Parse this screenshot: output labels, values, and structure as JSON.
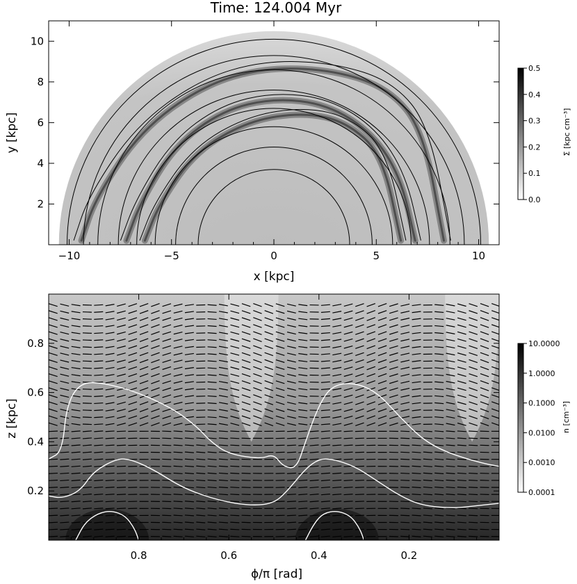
{
  "chart_data": [
    {
      "type": "heatmap",
      "title": "Time: 124.004 Myr",
      "xlabel": "x [kpc]",
      "ylabel": "y [kpc]",
      "xlim": [
        -11,
        11
      ],
      "ylim": [
        0,
        11
      ],
      "x_ticks": [
        -10,
        -5,
        0,
        5,
        10
      ],
      "x_tick_labels": [
        "−10",
        "−5",
        "0",
        "5",
        "10"
      ],
      "y_ticks": [
        2,
        4,
        6,
        8,
        10
      ],
      "y_tick_labels": [
        "2",
        "4",
        "6",
        "8",
        "10"
      ],
      "disk_radius": 10.5,
      "contour_radii": [
        3.7,
        4.8,
        5.8,
        6.7,
        7.6,
        8.6,
        9.3,
        10.1
      ],
      "spiral_arms": [
        {
          "x": [
            -9.4,
            -8.7,
            -6.5,
            -3.5,
            -0.5,
            2.8,
            5.6,
            7.3,
            8.3
          ],
          "y": [
            0.2,
            2.3,
            5.6,
            7.8,
            8.7,
            8.6,
            7.7,
            5.6,
            0.2
          ]
        },
        {
          "x": [
            -6.3,
            -5.6,
            -3.8,
            -1.2,
            1.5,
            3.6,
            5.3,
            6.2
          ],
          "y": [
            0.2,
            2.0,
            4.6,
            6.1,
            6.5,
            6.0,
            4.4,
            0.2
          ]
        },
        {
          "x": [
            -7.2,
            -6.5,
            -4.8,
            -2.5,
            0.0,
            2.6,
            4.8,
            6.2,
            6.9
          ],
          "y": [
            0.2,
            2.1,
            4.9,
            6.6,
            7.2,
            6.9,
            5.5,
            3.3,
            0.2
          ]
        }
      ],
      "colorbar": {
        "label": "Σ [kpc cm⁻³]",
        "range": [
          0.0,
          0.5
        ],
        "ticks": [
          0.0,
          0.1,
          0.2,
          0.3,
          0.4,
          0.5
        ],
        "tick_labels": [
          "0.0",
          "0.1",
          "0.2",
          "0.3",
          "0.4",
          "0.5"
        ]
      }
    },
    {
      "type": "heatmap",
      "title": "",
      "xlabel": "ϕ/π [rad]",
      "ylabel": "z [kpc]",
      "xlim": [
        1.0,
        0.0
      ],
      "ylim": [
        0.0,
        1.0
      ],
      "x_ticks": [
        0.8,
        0.6,
        0.4,
        0.2
      ],
      "x_tick_labels": [
        "0.8",
        "0.6",
        "0.4",
        "0.2"
      ],
      "y_ticks": [
        0.2,
        0.4,
        0.6,
        0.8
      ],
      "y_tick_labels": [
        "0.2",
        "0.4",
        "0.6",
        "0.8"
      ],
      "contours": [
        {
          "level": "outer",
          "x": [
            1.0,
            0.97,
            0.96,
            0.93,
            0.88,
            0.8,
            0.72,
            0.67,
            0.64,
            0.6,
            0.53,
            0.5,
            0.48,
            0.45,
            0.43,
            0.4,
            0.37,
            0.32,
            0.27,
            0.22,
            0.17,
            0.12,
            0.07,
            0.03,
            0.0
          ],
          "y": [
            0.33,
            0.36,
            0.55,
            0.64,
            0.64,
            0.6,
            0.53,
            0.46,
            0.4,
            0.35,
            0.33,
            0.35,
            0.3,
            0.29,
            0.4,
            0.55,
            0.63,
            0.64,
            0.6,
            0.5,
            0.41,
            0.36,
            0.33,
            0.31,
            0.3
          ]
        },
        {
          "level": "inner",
          "x": [
            1.0,
            0.97,
            0.93,
            0.9,
            0.85,
            0.82,
            0.77,
            0.7,
            0.62,
            0.55,
            0.5,
            0.47,
            0.43,
            0.4,
            0.37,
            0.32,
            0.27,
            0.22,
            0.17,
            0.1,
            0.05,
            0.0
          ],
          "y": [
            0.18,
            0.17,
            0.2,
            0.28,
            0.33,
            0.33,
            0.29,
            0.21,
            0.16,
            0.14,
            0.15,
            0.2,
            0.29,
            0.33,
            0.33,
            0.3,
            0.24,
            0.18,
            0.14,
            0.13,
            0.14,
            0.15
          ]
        },
        {
          "level": "core-left",
          "x": [
            0.94,
            0.92,
            0.89,
            0.86,
            0.83,
            0.81,
            0.8
          ],
          "y": [
            0.0,
            0.07,
            0.11,
            0.12,
            0.1,
            0.05,
            0.0
          ]
        },
        {
          "level": "core-right",
          "x": [
            0.43,
            0.41,
            0.39,
            0.36,
            0.33,
            0.31,
            0.3
          ],
          "y": [
            0.0,
            0.07,
            0.11,
            0.12,
            0.1,
            0.05,
            0.0
          ]
        }
      ],
      "colorbar": {
        "label": "n [cm⁻³]",
        "scale": "log",
        "range": [
          0.0001,
          10.0
        ],
        "ticks": [
          10.0,
          1.0,
          0.1,
          0.01,
          0.001,
          0.0001
        ],
        "tick_labels": [
          "10.0000",
          "1.0000",
          "0.1000",
          "0.0100",
          "0.0010",
          "0.0001"
        ]
      }
    }
  ]
}
